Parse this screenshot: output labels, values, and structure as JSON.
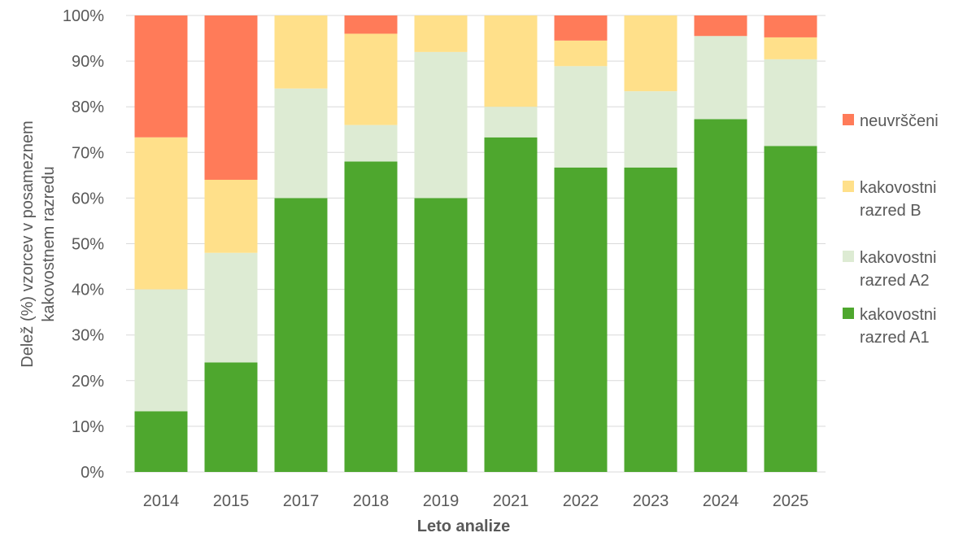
{
  "chart_data": {
    "type": "bar",
    "stacked": "percent",
    "title": "",
    "xlabel": "Leto analize",
    "ylabel": [
      "Delež (%) vzorcev v posameznem",
      "kakovostnem razredu"
    ],
    "ylim": [
      0,
      100
    ],
    "yticks": [
      "0%",
      "10%",
      "20%",
      "30%",
      "40%",
      "50%",
      "60%",
      "70%",
      "80%",
      "90%",
      "100%"
    ],
    "grid": true,
    "legend_position": "right",
    "categories": [
      "2014",
      "2015",
      "2017",
      "2018",
      "2019",
      "2021",
      "2022",
      "2023",
      "2024",
      "2025"
    ],
    "series": [
      {
        "name": "kakovostni razred A1",
        "legend_lines": [
          "kakovostni",
          "razred A1"
        ],
        "color": "#4EA72E",
        "values": [
          13.3,
          24,
          60,
          68,
          60,
          73.3,
          66.7,
          66.7,
          77.3,
          71.4
        ]
      },
      {
        "name": "kakovostni razred A2",
        "legend_lines": [
          "kakovostni",
          "razred A2"
        ],
        "color": "#DDEBD3",
        "values": [
          26.7,
          24,
          24,
          8,
          32,
          6.7,
          22.2,
          16.7,
          18.2,
          19.0
        ]
      },
      {
        "name": "kakovostni razred B",
        "legend_lines": [
          "kakovostni",
          "razred B"
        ],
        "color": "#FFE08A",
        "values": [
          33.3,
          16,
          16,
          20,
          8,
          20,
          5.6,
          16.6,
          0,
          4.8
        ]
      },
      {
        "name": "neuvrščeni",
        "legend_lines": [
          "neuvrščeni"
        ],
        "color": "#FF7B59",
        "values": [
          26.7,
          36,
          0,
          4,
          0,
          0,
          5.5,
          0,
          4.5,
          4.8
        ]
      }
    ]
  }
}
